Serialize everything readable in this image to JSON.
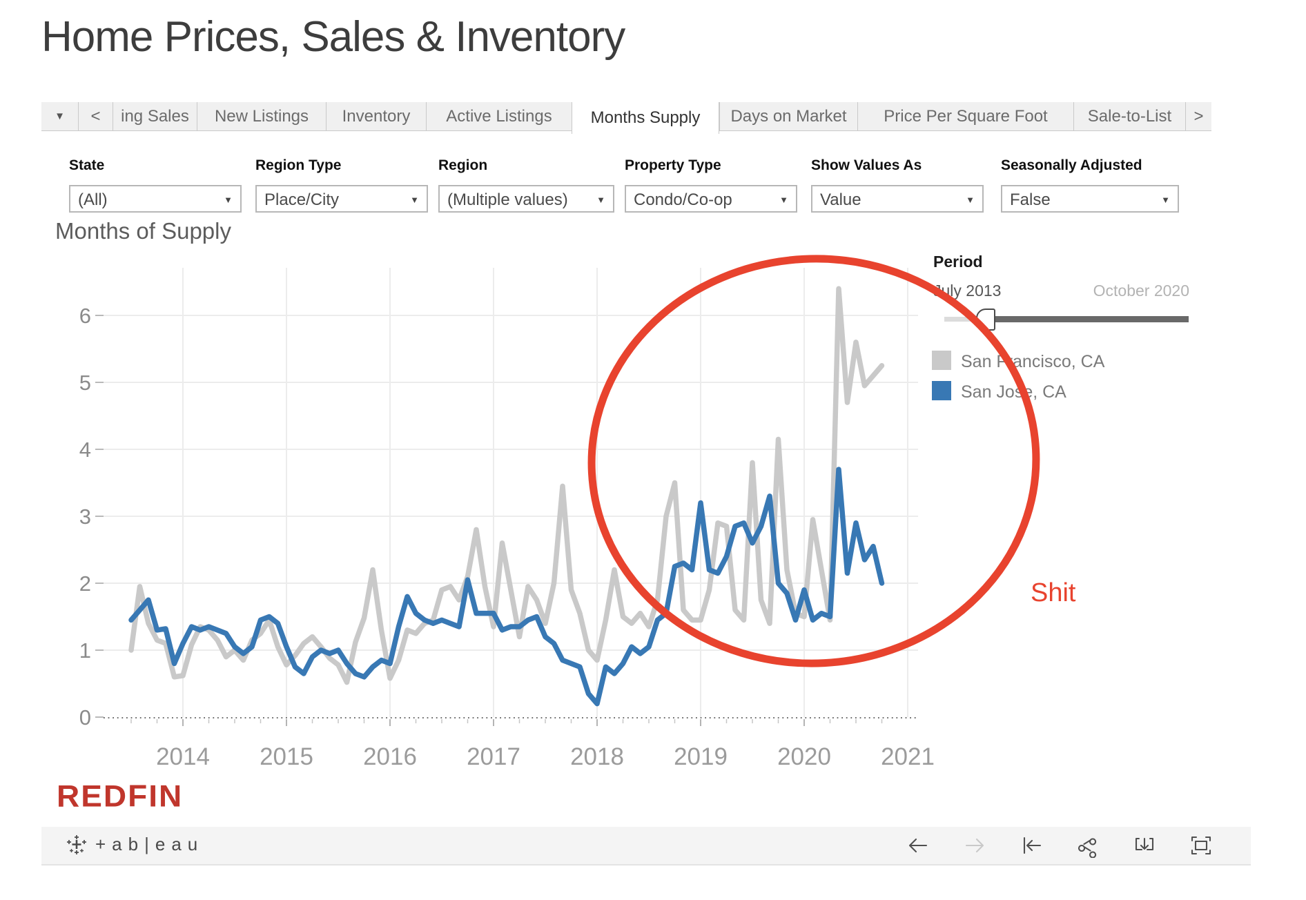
{
  "page": {
    "title": "Home Prices, Sales & Inventory"
  },
  "tab_bar": {
    "dropdown_icon": "▼",
    "back_icon": "<",
    "forward_icon": ">",
    "tabs": [
      "ing Sales",
      "New Listings",
      "Inventory",
      "Active Listings",
      "Months Supply",
      "Days on Market",
      "Price Per Square Foot",
      "Sale-to-List"
    ],
    "active_tab": "Months Supply"
  },
  "filters": [
    {
      "label": "State",
      "value": "(All)"
    },
    {
      "label": "Region Type",
      "value": "Place/City"
    },
    {
      "label": "Region",
      "value": "(Multiple values)"
    },
    {
      "label": "Property Type",
      "value": "Condo/Co-op"
    },
    {
      "label": "Show Values As",
      "value": "Value"
    },
    {
      "label": "Seasonally Adjusted",
      "value": "False"
    }
  ],
  "chart": {
    "title": "Months of Supply",
    "period": {
      "label": "Period",
      "start": "July 2013",
      "end": "October 2020"
    },
    "legend": [
      {
        "name": "San Francisco, CA",
        "color": "#c9c9c9"
      },
      {
        "name": "San Jose, CA",
        "color": "#3878b4"
      }
    ]
  },
  "chart_data": {
    "type": "line",
    "title": "Months of Supply",
    "x_start": "2013-07",
    "x_end": "2020-10",
    "x_interval": "month",
    "x_year_ticks": [
      2014,
      2015,
      2016,
      2017,
      2018,
      2019,
      2020,
      2021
    ],
    "y_ticks": [
      0,
      1,
      2,
      3,
      4,
      5,
      6
    ],
    "ylim": [
      0,
      6.7
    ],
    "grid": true,
    "legend_position": "right",
    "series": [
      {
        "name": "San Francisco, CA",
        "color": "#c9c9c9",
        "values": [
          1.0,
          1.95,
          1.4,
          1.15,
          1.1,
          0.6,
          0.62,
          1.08,
          1.35,
          1.3,
          1.15,
          0.9,
          1.0,
          0.85,
          1.15,
          1.25,
          1.45,
          1.05,
          0.78,
          0.92,
          1.1,
          1.2,
          1.05,
          0.88,
          0.78,
          0.52,
          1.12,
          1.48,
          2.2,
          1.3,
          0.58,
          0.85,
          1.3,
          1.25,
          1.4,
          1.45,
          1.9,
          1.95,
          1.75,
          2.1,
          2.8,
          1.95,
          1.35,
          2.6,
          1.9,
          1.2,
          1.95,
          1.75,
          1.4,
          2.0,
          3.45,
          1.9,
          1.55,
          1.0,
          0.85,
          1.45,
          2.2,
          1.5,
          1.4,
          1.55,
          1.35,
          1.75,
          3.0,
          3.5,
          1.6,
          1.45,
          1.45,
          1.9,
          2.9,
          2.85,
          1.6,
          1.45,
          3.8,
          1.75,
          1.4,
          4.15,
          2.2,
          1.55,
          1.5,
          2.95,
          2.2,
          1.45,
          6.4,
          4.7,
          5.6,
          4.95,
          5.1,
          5.25
        ]
      },
      {
        "name": "San Jose, CA",
        "color": "#3878b4",
        "values": [
          1.45,
          1.6,
          1.75,
          1.3,
          1.32,
          0.8,
          1.1,
          1.35,
          1.3,
          1.35,
          1.3,
          1.25,
          1.05,
          0.95,
          1.05,
          1.45,
          1.5,
          1.4,
          1.05,
          0.75,
          0.65,
          0.9,
          1.0,
          0.95,
          1.0,
          0.8,
          0.65,
          0.6,
          0.75,
          0.85,
          0.8,
          1.35,
          1.8,
          1.55,
          1.45,
          1.4,
          1.45,
          1.4,
          1.35,
          2.05,
          1.55,
          1.55,
          1.55,
          1.3,
          1.35,
          1.35,
          1.45,
          1.5,
          1.2,
          1.1,
          0.85,
          0.8,
          0.75,
          0.35,
          0.2,
          0.75,
          0.65,
          0.8,
          1.05,
          0.95,
          1.05,
          1.45,
          1.55,
          2.25,
          2.3,
          2.2,
          3.2,
          2.2,
          2.15,
          2.4,
          2.85,
          2.9,
          2.6,
          2.85,
          3.3,
          2.0,
          1.85,
          1.45,
          1.9,
          1.45,
          1.55,
          1.5,
          3.7,
          2.15,
          2.9,
          2.35,
          2.55,
          2.0
        ]
      }
    ]
  },
  "annotation": {
    "text": "Shit",
    "color": "#e8432e"
  },
  "branding": {
    "redfin": "REDFIN",
    "tableau_text": "+ab|eau"
  },
  "toolbar": {
    "icons": [
      "undo-arrow",
      "redo-arrow",
      "revert",
      "share-icon",
      "download-icon",
      "fullscreen-icon"
    ]
  }
}
